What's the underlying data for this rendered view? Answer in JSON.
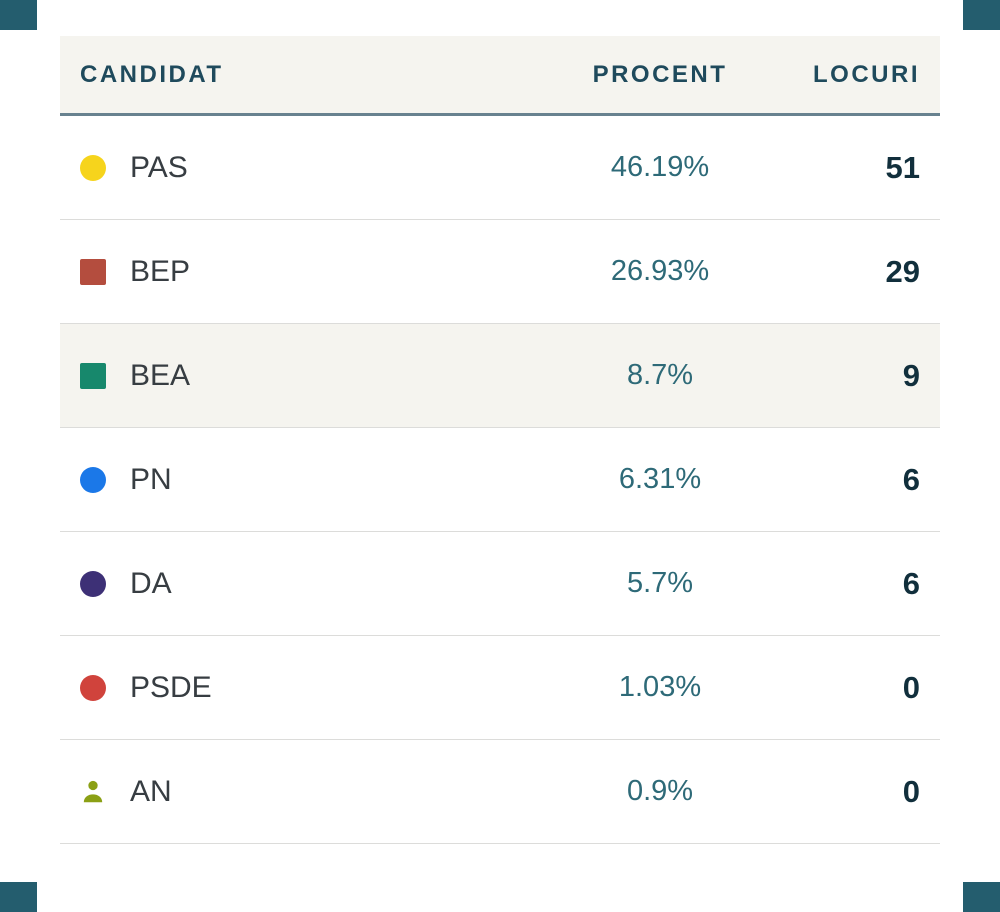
{
  "chart_data": {
    "type": "table",
    "columns": [
      "CANDIDAT",
      "PROCENT",
      "LOCURI"
    ],
    "rows": [
      {
        "candidat": "PAS",
        "procent": 46.19,
        "locuri": 51
      },
      {
        "candidat": "BEP",
        "procent": 26.93,
        "locuri": 29
      },
      {
        "candidat": "BEA",
        "procent": 8.7,
        "locuri": 9
      },
      {
        "candidat": "PN",
        "procent": 6.31,
        "locuri": 6
      },
      {
        "candidat": "DA",
        "procent": 5.7,
        "locuri": 6
      },
      {
        "candidat": "PSDE",
        "procent": 1.03,
        "locuri": 0
      },
      {
        "candidat": "AN",
        "procent": 0.9,
        "locuri": 0
      }
    ]
  },
  "header": {
    "candidat": "CANDIDAT",
    "procent": "PROCENT",
    "locuri": "LOCURI"
  },
  "rows": [
    {
      "name": "PAS",
      "icon": "circle-icon",
      "color": "#f6d41c",
      "percent": "46.19%",
      "seats": "51",
      "highlighted": false
    },
    {
      "name": "BEP",
      "icon": "square-icon",
      "color": "#b44d3e",
      "percent": "26.93%",
      "seats": "29",
      "highlighted": false
    },
    {
      "name": "BEA",
      "icon": "square-icon",
      "color": "#17886c",
      "percent": "8.7%",
      "seats": "9",
      "highlighted": true
    },
    {
      "name": "PN",
      "icon": "circle-icon",
      "color": "#1b78e8",
      "percent": "6.31%",
      "seats": "6",
      "highlighted": false
    },
    {
      "name": "DA",
      "icon": "circle-icon",
      "color": "#3d3076",
      "percent": "5.7%",
      "seats": "6",
      "highlighted": false
    },
    {
      "name": "PSDE",
      "icon": "circle-icon",
      "color": "#d0433c",
      "percent": "1.03%",
      "seats": "0",
      "highlighted": false
    },
    {
      "name": "AN",
      "icon": "person-icon",
      "color": "#8ba015",
      "percent": "0.9%",
      "seats": "0",
      "highlighted": false
    }
  ],
  "colors": {
    "header_bg": "#f5f4ef",
    "highlight_bg": "#f5f4ef",
    "header_text": "#1f4a5c",
    "name_text": "#373d42",
    "percent_text": "#2e6a78",
    "seats_text": "#112f3c",
    "header_rule": "#68828f",
    "row_rule": "#dcdcda",
    "corner_accent": "#245d6e"
  }
}
